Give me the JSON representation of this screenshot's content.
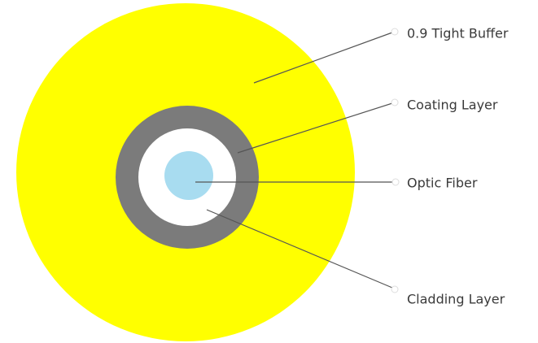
{
  "diagram": {
    "labels": [
      "0.9 Tight Buffer",
      "Coating Layer",
      "Optic Fiber",
      "Cladding Layer"
    ]
  }
}
